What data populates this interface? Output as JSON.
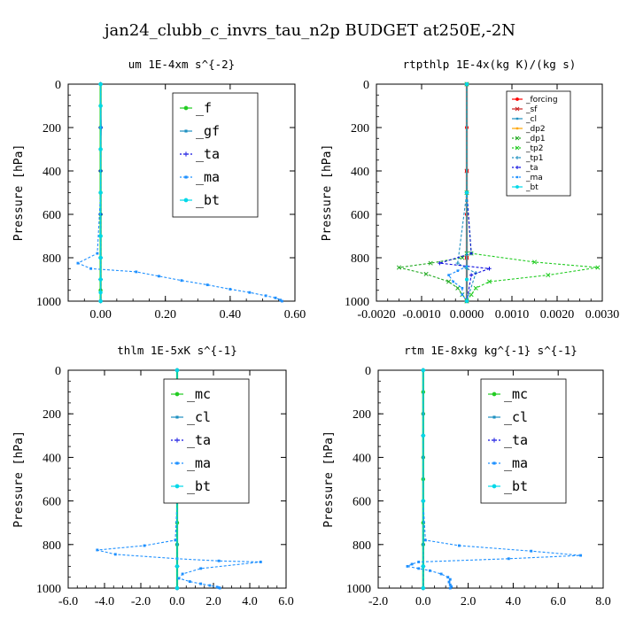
{
  "figure_title": "jan24_clubb_c_invrs_tau_n2p  BUDGET at250E,-2N",
  "colors": {
    "_f": "#22cc22",
    "_gf": "#1e90c0",
    "_ta": "#1010e0",
    "_ma": "#1e90ff",
    "_bt": "#00d8e8",
    "_mc": "#22cc22",
    "_cl": "#1e90c0",
    "_forcing": "#ff0000",
    "_sf": "#cc2222",
    "_dp2": "#ffa500",
    "_dp1": "#22aa22",
    "_tp2": "#22cc22",
    "_tp1": "#1e90c0"
  },
  "chart_data": [
    {
      "type": "line",
      "title": "um  1E-4xm s^{-2}",
      "ylabel": "Pressure [hPa]",
      "xlim": [
        -0.1,
        0.6
      ],
      "ylim": [
        1000,
        0
      ],
      "xticks": [
        "0.00",
        "0.20",
        "0.40",
        "0.60"
      ],
      "xtick_values": [
        0,
        0.2,
        0.4,
        0.6
      ],
      "yticks": [
        "0",
        "200",
        "400",
        "600",
        "800",
        "1000"
      ],
      "ytick_values": [
        0,
        200,
        400,
        600,
        800,
        1000
      ],
      "legend_style": "big",
      "legend_position": "upper-right",
      "series": [
        {
          "name": "_f",
          "x": [
            0,
            0,
            0,
            0,
            0,
            0,
            0,
            0,
            0,
            0,
            0,
            0
          ],
          "y": [
            0,
            100,
            200,
            300,
            400,
            500,
            600,
            700,
            800,
            900,
            950,
            1000
          ]
        },
        {
          "name": "_gf",
          "x": [
            0,
            0,
            0.002,
            0,
            0,
            0,
            0,
            0,
            0,
            0,
            0
          ],
          "y": [
            0,
            100,
            200,
            300,
            400,
            500,
            600,
            700,
            800,
            900,
            1000
          ]
        },
        {
          "name": "_ta",
          "x": [
            0,
            0,
            0,
            0,
            0,
            0,
            0
          ],
          "y": [
            0,
            200,
            400,
            600,
            800,
            900,
            1000
          ]
        },
        {
          "name": "_ma",
          "x": [
            0,
            0,
            0,
            -0.01,
            -0.07,
            -0.03,
            0.11,
            0.18,
            0.25,
            0.33,
            0.4,
            0.46,
            0.51,
            0.54,
            0.555,
            0.56
          ],
          "y": [
            0,
            200,
            500,
            780,
            825,
            850,
            865,
            885,
            905,
            925,
            945,
            960,
            975,
            985,
            995,
            1000
          ]
        },
        {
          "name": "_bt",
          "x": [
            0,
            0,
            0,
            0,
            0,
            0,
            0,
            0,
            0
          ],
          "y": [
            0,
            100,
            300,
            500,
            700,
            800,
            900,
            960,
            1000
          ]
        }
      ]
    },
    {
      "type": "line",
      "title": "rtpthlp  1E-4x(kg K)/(kg s)",
      "ylabel": "Pressure [hPa]",
      "xlim": [
        -0.002,
        0.003
      ],
      "ylim": [
        1000,
        0
      ],
      "xticks": [
        "-0.0020",
        "-0.0010",
        "0.0000",
        "0.0010",
        "0.0020",
        "0.0030"
      ],
      "xtick_values": [
        -0.002,
        -0.001,
        0,
        0.001,
        0.002,
        0.003
      ],
      "yticks": [
        "0",
        "200",
        "400",
        "600",
        "800",
        "1000"
      ],
      "ytick_values": [
        0,
        200,
        400,
        600,
        800,
        1000
      ],
      "legend_style": "small",
      "legend_position": "upper-right",
      "series": [
        {
          "name": "_forcing",
          "x": [
            0,
            0,
            0,
            0,
            0,
            0
          ],
          "y": [
            0,
            200,
            400,
            600,
            800,
            1000
          ]
        },
        {
          "name": "_sf",
          "x": [
            0,
            0,
            0,
            0
          ],
          "y": [
            0,
            400,
            800,
            1000
          ]
        },
        {
          "name": "_cl",
          "x": [
            0,
            0,
            0
          ],
          "y": [
            0,
            500,
            1000
          ]
        },
        {
          "name": "_dp2",
          "x": [
            0,
            0,
            0
          ],
          "y": [
            0,
            500,
            1000
          ]
        },
        {
          "name": "_dp1",
          "x": [
            0,
            0,
            0,
            -0.0001,
            -0.0008,
            -0.0015,
            -0.0009,
            -0.0004,
            -0.0002,
            -0.0001,
            0
          ],
          "y": [
            0,
            500,
            780,
            800,
            825,
            845,
            875,
            910,
            940,
            970,
            1000
          ]
        },
        {
          "name": "_tp2",
          "x": [
            0,
            0,
            0.0001,
            0.0015,
            0.0029,
            0.0018,
            0.0005,
            0.0002,
            0.0001,
            0
          ],
          "y": [
            0,
            500,
            780,
            820,
            845,
            880,
            910,
            940,
            970,
            1000
          ]
        },
        {
          "name": "_tp1",
          "x": [
            0,
            0,
            -0.0002,
            0,
            0.0002,
            0
          ],
          "y": [
            0,
            500,
            825,
            850,
            870,
            1000
          ]
        },
        {
          "name": "_ta",
          "x": [
            0,
            0,
            0.0001,
            -0.0006,
            0.0005,
            0.0001,
            0
          ],
          "y": [
            0,
            500,
            780,
            825,
            850,
            880,
            1000
          ]
        },
        {
          "name": "_ma",
          "x": [
            0,
            0,
            0,
            -0.0002,
            -0.0004,
            -0.0003,
            -0.0001,
            -0.0001,
            0
          ],
          "y": [
            0,
            500,
            840,
            860,
            880,
            910,
            940,
            970,
            1000
          ]
        },
        {
          "name": "_bt",
          "x": [
            0,
            0,
            0,
            0
          ],
          "y": [
            0,
            500,
            900,
            1000
          ]
        }
      ]
    },
    {
      "type": "line",
      "title": "thlm  1E-5xK s^{-1}",
      "ylabel": "Pressure [hPa]",
      "xlim": [
        -6,
        6
      ],
      "ylim": [
        1000,
        0
      ],
      "xticks": [
        "-6.0",
        "-4.0",
        "-2.0",
        "0.0",
        "2.0",
        "4.0",
        "6.0"
      ],
      "xtick_values": [
        -6,
        -4,
        -2,
        0,
        2,
        4,
        6
      ],
      "yticks": [
        "0",
        "200",
        "400",
        "600",
        "800",
        "1000"
      ],
      "ytick_values": [
        0,
        200,
        400,
        600,
        800,
        1000
      ],
      "legend_style": "big",
      "legend_position": "upper-right",
      "series": [
        {
          "name": "_mc",
          "x": [
            0,
            0,
            0,
            0,
            0,
            0,
            0,
            0,
            0,
            0,
            0
          ],
          "y": [
            0,
            100,
            200,
            300,
            400,
            500,
            600,
            700,
            800,
            900,
            1000
          ]
        },
        {
          "name": "_cl",
          "x": [
            0,
            0,
            0,
            0,
            0,
            0
          ],
          "y": [
            0,
            200,
            400,
            600,
            800,
            1000
          ]
        },
        {
          "name": "_ta",
          "x": [
            0,
            0,
            0,
            0,
            0
          ],
          "y": [
            0,
            300,
            600,
            900,
            1000
          ]
        },
        {
          "name": "_ma",
          "x": [
            0,
            0,
            0,
            -0.1,
            -1.8,
            -4.4,
            -3.4,
            0,
            2.3,
            4.6,
            1.3,
            0.3,
            0.1,
            0.7,
            1.3,
            1.8,
            2.2,
            2.3,
            2.35
          ],
          "y": [
            0,
            300,
            600,
            780,
            805,
            825,
            845,
            865,
            875,
            880,
            910,
            935,
            955,
            970,
            980,
            988,
            995,
            998,
            1000
          ]
        },
        {
          "name": "_bt",
          "x": [
            0,
            0,
            0,
            0,
            0
          ],
          "y": [
            0,
            300,
            600,
            900,
            1000
          ]
        }
      ]
    },
    {
      "type": "line",
      "title": "rtm  1E-8xkg kg^{-1} s^{-1}",
      "ylabel": "Pressure [hPa]",
      "xlim": [
        -2,
        8
      ],
      "ylim": [
        1000,
        0
      ],
      "xticks": [
        "-2.0",
        "0.0",
        "2.0",
        "4.0",
        "6.0",
        "8.0"
      ],
      "xtick_values": [
        -2,
        0,
        2,
        4,
        6,
        8
      ],
      "yticks": [
        "0",
        "200",
        "400",
        "600",
        "800",
        "1000"
      ],
      "ytick_values": [
        0,
        200,
        400,
        600,
        800,
        1000
      ],
      "legend_style": "big",
      "legend_position": "upper-right",
      "series": [
        {
          "name": "_mc",
          "x": [
            0,
            0,
            0,
            0,
            0,
            0,
            0,
            0,
            0,
            0,
            0
          ],
          "y": [
            0,
            100,
            200,
            300,
            400,
            500,
            600,
            700,
            800,
            900,
            1000
          ]
        },
        {
          "name": "_cl",
          "x": [
            0,
            0,
            0,
            0,
            0,
            0
          ],
          "y": [
            0,
            200,
            400,
            600,
            800,
            1000
          ]
        },
        {
          "name": "_ta",
          "x": [
            0,
            0,
            0,
            0,
            0
          ],
          "y": [
            0,
            300,
            600,
            900,
            1000
          ]
        },
        {
          "name": "_ma",
          "x": [
            0,
            0,
            0,
            0.1,
            1.6,
            4.8,
            7.0,
            3.8,
            -0.2,
            -0.5,
            -0.7,
            -0.2,
            0.3,
            0.8,
            1.1,
            1.2,
            1.15,
            1.2,
            1.25,
            1.2
          ],
          "y": [
            0,
            300,
            600,
            780,
            805,
            830,
            850,
            865,
            880,
            890,
            900,
            910,
            920,
            935,
            950,
            960,
            972,
            985,
            993,
            1000
          ]
        },
        {
          "name": "_bt",
          "x": [
            0,
            0,
            0,
            0,
            0
          ],
          "y": [
            0,
            300,
            600,
            900,
            1000
          ]
        }
      ]
    }
  ]
}
